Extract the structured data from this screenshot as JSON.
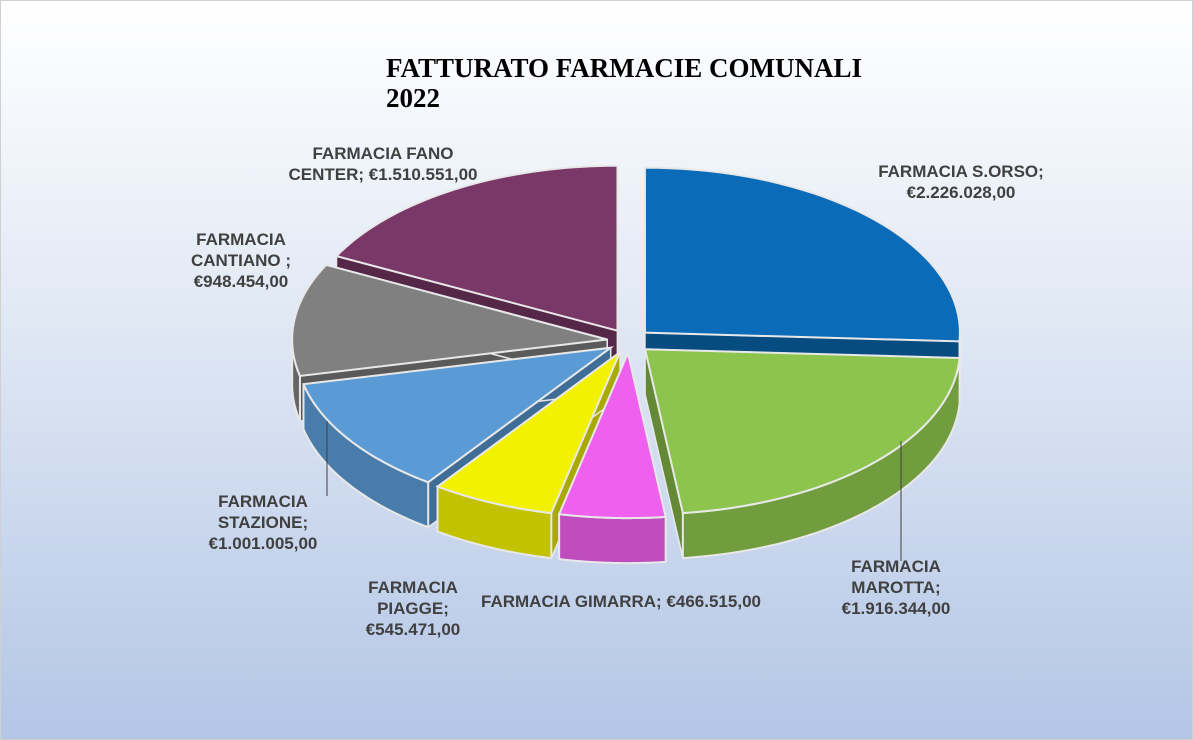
{
  "chart_data": {
    "type": "pie3d",
    "title": "FATTURATO FARMACIE COMUNALI 2022",
    "categories": [
      "FARMACIA S.ORSO;",
      "FARMACIA MAROTTA;",
      "FARMACIA GIMARRA;",
      "FARMACIA PIAGGE;",
      "FARMACIA STAZIONE;",
      "FARMACIA CANTIANO ;",
      "FARMACIA FANO CENTER;"
    ],
    "values": [
      2226028,
      1916344,
      466515,
      545471,
      1001005,
      948454,
      1510551
    ],
    "value_labels": [
      "€2.226.028,00",
      "€1.916.344,00",
      "€466.515,00",
      "€545.471,00",
      "€1.001.005,00",
      "€948.454,00",
      "€1.510.551,00"
    ],
    "colors": [
      "#0a6cb8",
      "#8dc44e",
      "#f060ee",
      "#f2f200",
      "#5b9bd5",
      "#808080",
      "#7a3868"
    ]
  }
}
